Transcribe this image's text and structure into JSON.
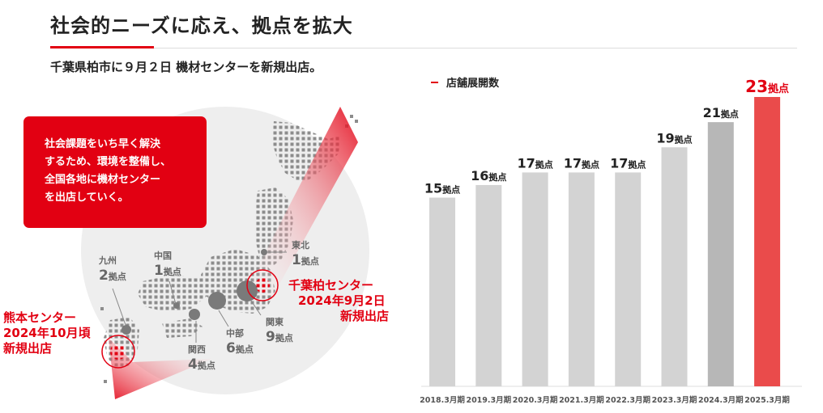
{
  "header": {
    "title": "社会的ニーズに応え、拠点を拡大",
    "subtitle": "千葉県柏市に９月２日 機材センターを新規出店。"
  },
  "message": {
    "lines": [
      "社会課題をいち早く解決",
      "するため、環境を整備し、",
      "全国各地に機材センター",
      "を出店していく。"
    ]
  },
  "map": {
    "regions": [
      {
        "name": "九州",
        "count": "2",
        "unit": "拠点"
      },
      {
        "name": "中国",
        "count": "1",
        "unit": "拠点"
      },
      {
        "name": "関西",
        "count": "4",
        "unit": "拠点"
      },
      {
        "name": "中部",
        "count": "6",
        "unit": "拠点"
      },
      {
        "name": "関東",
        "count": "9",
        "unit": "拠点"
      },
      {
        "name": "東北",
        "count": "1",
        "unit": "拠点"
      }
    ],
    "new_centers": [
      {
        "lines": [
          "千葉柏センター",
          "2024年9月2日",
          "新規出店"
        ]
      },
      {
        "lines": [
          "熊本センター",
          "2024年10月頃",
          "新規出店"
        ]
      }
    ],
    "colors": {
      "dots": "#8a8a8a",
      "highlight": "#e20012",
      "circle": "#eeeeee"
    }
  },
  "chart_data": {
    "type": "bar",
    "title": "店舗展開数",
    "unit": "拠点",
    "categories": [
      "2018.3月期",
      "2019.3月期",
      "2020.3月期",
      "2021.3月期",
      "2022.3月期",
      "2023.3月期",
      "2024.3月期",
      "2025.3月期"
    ],
    "values": [
      15,
      16,
      17,
      17,
      17,
      19,
      21,
      23
    ],
    "ylim": [
      0,
      23
    ],
    "grid": false,
    "colors": [
      "#d3d3d3",
      "#d3d3d3",
      "#d3d3d3",
      "#d3d3d3",
      "#d3d3d3",
      "#d3d3d3",
      "#b7b7b7",
      "#ea4b4b"
    ],
    "label_colors": [
      "#222222",
      "#222222",
      "#222222",
      "#222222",
      "#222222",
      "#222222",
      "#222222",
      "#e20012"
    ]
  }
}
